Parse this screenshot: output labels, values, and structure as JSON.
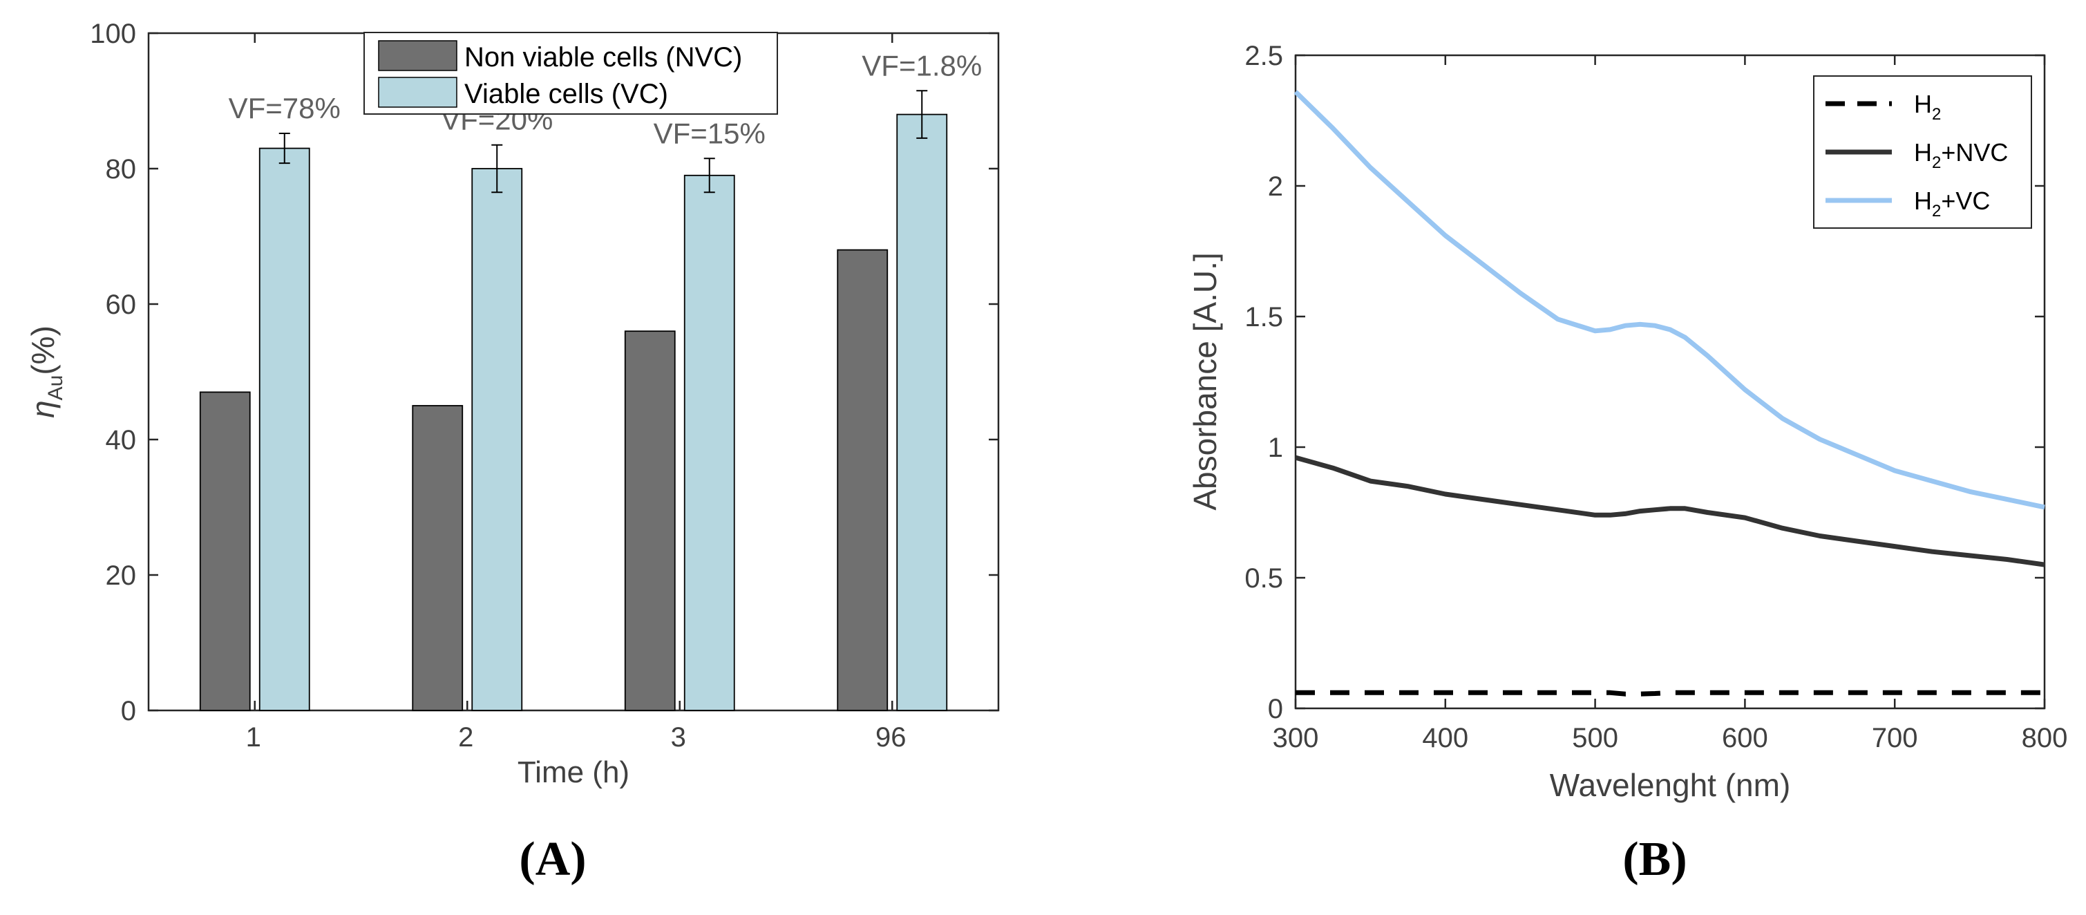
{
  "panel_labels": {
    "a": "(A)",
    "b": "(B)"
  },
  "chart_data": [
    {
      "type": "bar",
      "panel": "A",
      "xlabel": "Time (h)",
      "ylabel_symbol": "η",
      "ylabel_sub": "Au",
      "ylabel_unit": "(%)",
      "ylim": [
        0,
        100
      ],
      "yticks": [
        0,
        20,
        40,
        60,
        80,
        100
      ],
      "categories": [
        "1",
        "2",
        "3",
        "96"
      ],
      "series": [
        {
          "name": "Non viable cells (NVC)",
          "color": "#707070",
          "values": [
            47,
            45,
            56,
            68
          ]
        },
        {
          "name": "Viable cells (VC)",
          "color": "#b6d7e0",
          "values": [
            83,
            80,
            79,
            88
          ],
          "errors": [
            2.2,
            3.5,
            2.5,
            3.5
          ]
        }
      ],
      "annotations": [
        "VF=78%",
        "VF=20%",
        "VF=15%",
        "VF=1.8%"
      ],
      "legend_position": "top-center"
    },
    {
      "type": "line",
      "panel": "B",
      "xlabel": "Wavelenght (nm)",
      "ylabel": "Absorbance [A.U.]",
      "xlim": [
        300,
        800
      ],
      "ylim": [
        0,
        2.5
      ],
      "xticks": [
        300,
        400,
        500,
        600,
        700,
        800
      ],
      "ytick_labels": [
        "0",
        "0.5",
        "1",
        "1.5",
        "2",
        "2.5"
      ],
      "ytick_values": [
        0,
        0.5,
        1,
        1.5,
        2,
        2.5
      ],
      "x": [
        300,
        325,
        350,
        375,
        400,
        425,
        450,
        475,
        500,
        510,
        520,
        530,
        540,
        550,
        560,
        575,
        600,
        625,
        650,
        675,
        700,
        725,
        750,
        775,
        800
      ],
      "series": [
        {
          "name": "H",
          "sub": "2",
          "suffix": "",
          "color": "#000000",
          "dashed": true,
          "values": [
            0.06,
            0.06,
            0.06,
            0.06,
            0.06,
            0.06,
            0.06,
            0.06,
            0.06,
            0.06,
            0.055,
            0.055,
            0.057,
            0.06,
            0.06,
            0.06,
            0.06,
            0.06,
            0.06,
            0.06,
            0.06,
            0.06,
            0.06,
            0.06,
            0.06
          ]
        },
        {
          "name": "H",
          "sub": "2",
          "suffix": "+NVC",
          "color": "#333333",
          "dashed": false,
          "values": [
            0.96,
            0.92,
            0.87,
            0.85,
            0.82,
            0.8,
            0.78,
            0.76,
            0.74,
            0.74,
            0.745,
            0.755,
            0.76,
            0.765,
            0.765,
            0.75,
            0.73,
            0.69,
            0.66,
            0.64,
            0.62,
            0.6,
            0.585,
            0.57,
            0.55
          ]
        },
        {
          "name": "H",
          "sub": "2",
          "suffix": "+VC",
          "color": "#99c6f2",
          "dashed": false,
          "values": [
            2.36,
            2.22,
            2.07,
            1.94,
            1.81,
            1.7,
            1.59,
            1.49,
            1.445,
            1.45,
            1.465,
            1.47,
            1.465,
            1.45,
            1.42,
            1.35,
            1.22,
            1.11,
            1.03,
            0.97,
            0.91,
            0.87,
            0.83,
            0.8,
            0.77
          ]
        }
      ],
      "legend_position": "top-right"
    }
  ]
}
